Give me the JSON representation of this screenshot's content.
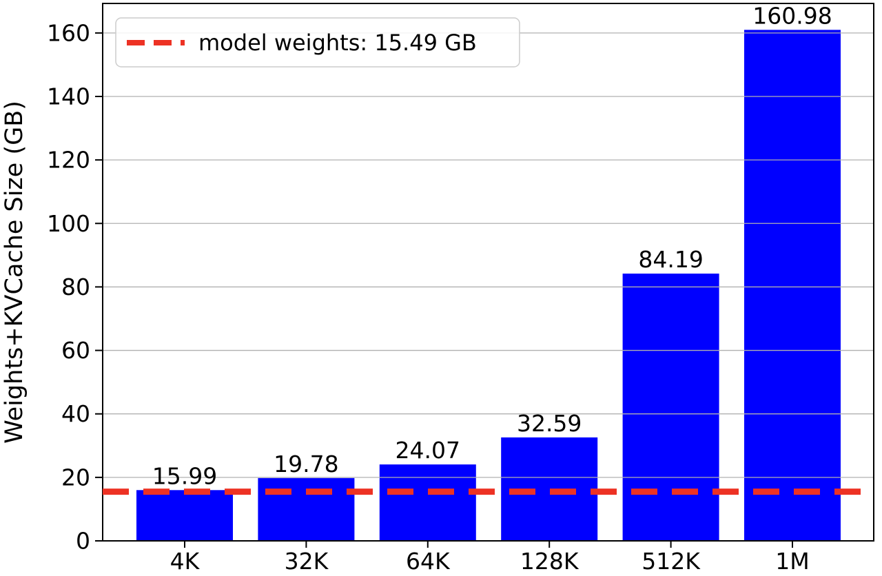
{
  "figure": {
    "background": "#ffffff"
  },
  "chart_data": {
    "type": "bar",
    "title": "",
    "xlabel": "",
    "ylabel": "Weights+KVCache Size (GB)",
    "categories": [
      "4K",
      "32K",
      "64K",
      "128K",
      "512K",
      "1M"
    ],
    "values": [
      15.99,
      19.78,
      24.07,
      32.59,
      84.19,
      160.98
    ],
    "bar_labels": [
      "15.99",
      "19.78",
      "24.07",
      "32.59",
      "84.19",
      "160.98"
    ],
    "yticks": [
      0,
      20,
      40,
      60,
      80,
      100,
      120,
      140,
      160
    ],
    "ylim": [
      0,
      169.3
    ],
    "grid": "horizontal-on-top",
    "legend_position": "upper left",
    "bar_color": "#0000ff",
    "grid_color": "#b0b0b0",
    "spine_color": "#000000",
    "reference_line": {
      "value": 15.49,
      "label": "model weights: 15.49 GB",
      "color": "#ed3224",
      "style": "dashed"
    }
  }
}
